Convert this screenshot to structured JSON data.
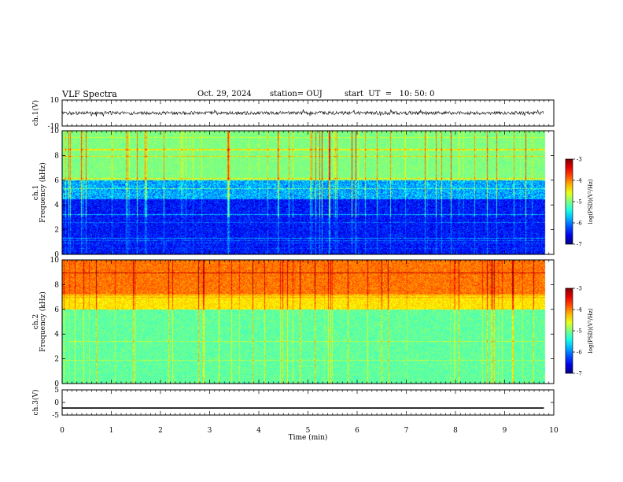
{
  "header": {
    "title": "VLF Spectra",
    "date": "Oct. 29, 2024",
    "station": "station= OUJ",
    "start": "start  UT  =   10: 50: 0"
  },
  "chart_data": [
    {
      "type": "line",
      "name": "ch1-waveform",
      "ylabel": "ch.1(V)",
      "ylim": [
        -10,
        10
      ],
      "ytick_labels": [
        "10",
        "-10"
      ],
      "xlim": [
        0,
        10
      ],
      "trace_level": 0,
      "trace_amplitude_approx": 1.3
    },
    {
      "type": "heatmap",
      "name": "ch1-spectrogram",
      "ylabel": "ch.1\nFrequency (kHz)",
      "ylim": [
        0,
        10
      ],
      "ytick_labels": [
        "0",
        "2",
        "4",
        "6",
        "8",
        "10"
      ],
      "xlim": [
        0,
        10
      ],
      "data_end_min": 9.8,
      "colorbar": {
        "label": "log(PSD)(V²/Hz)",
        "range": [
          -7,
          -3
        ],
        "tick_labels": [
          "-7",
          "-6",
          "-5",
          "-4",
          "-3"
        ]
      }
    },
    {
      "type": "heatmap",
      "name": "ch2-spectrogram",
      "ylabel": "ch.2\nFrequency (kHz)",
      "ylim": [
        0,
        10
      ],
      "ytick_labels": [
        "0",
        "2",
        "4",
        "6",
        "8",
        "10"
      ],
      "xlim": [
        0,
        10
      ],
      "data_end_min": 9.8,
      "colorbar": {
        "label": "log(PSD)(V²/Hz)",
        "range": [
          -7,
          -3
        ],
        "tick_labels": [
          "-7",
          "-6",
          "-5",
          "-4",
          "-3"
        ]
      }
    },
    {
      "type": "line",
      "name": "ch3-waveform",
      "ylabel": "ch.3(V)",
      "ylim": [
        -5,
        5
      ],
      "ytick_labels": [
        "5",
        "0",
        "-5"
      ],
      "xlim": [
        0,
        10
      ],
      "trace_level": -2.2
    }
  ],
  "xaxis": {
    "label": "Time (min)",
    "tick_labels": [
      "0",
      "1",
      "2",
      "3",
      "4",
      "5",
      "6",
      "7",
      "8",
      "9",
      "10"
    ]
  }
}
